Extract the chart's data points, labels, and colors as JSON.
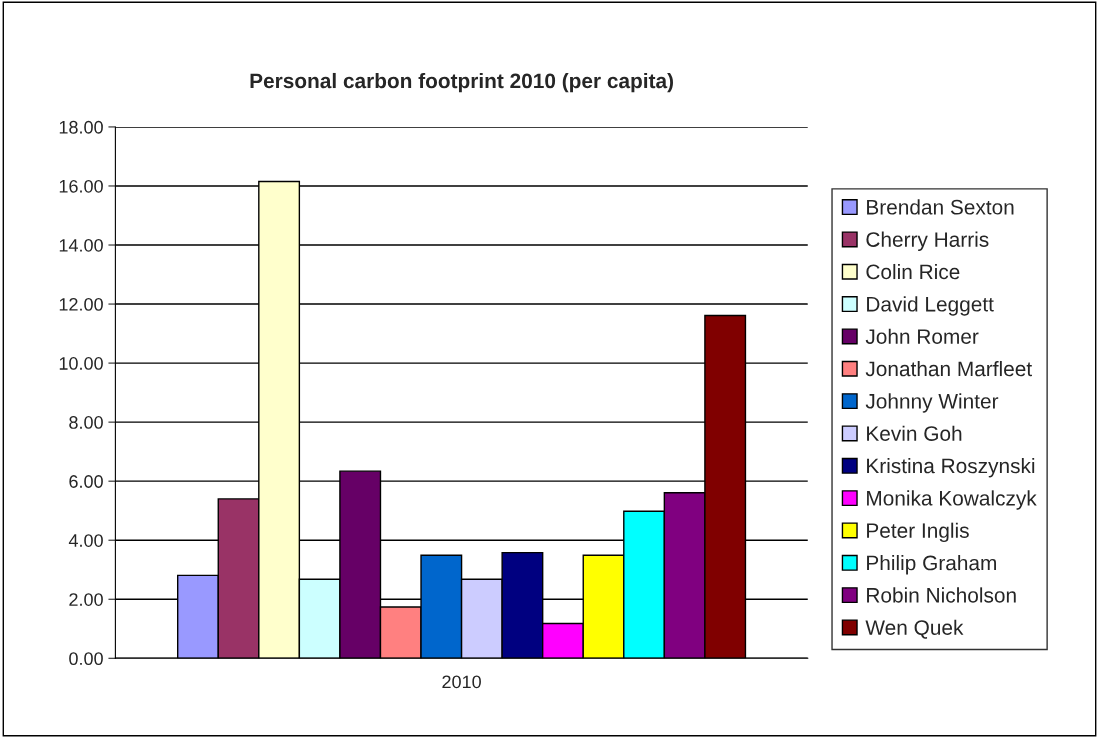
{
  "chart_data": {
    "type": "bar",
    "title": "Personal carbon footprint 2010 (per capita)",
    "categories": [
      "2010"
    ],
    "series": [
      {
        "name": "Brendan Sexton",
        "color": "#9999ff",
        "values": [
          2.81
        ]
      },
      {
        "name": "Cherry Harris",
        "color": "#993366",
        "values": [
          5.4
        ]
      },
      {
        "name": "Colin Rice",
        "color": "#ffffcc",
        "values": [
          16.15
        ]
      },
      {
        "name": "David Leggett",
        "color": "#ccffff",
        "values": [
          2.68
        ]
      },
      {
        "name": "John Romer",
        "color": "#660066",
        "values": [
          6.34
        ]
      },
      {
        "name": "Jonathan Marfleet",
        "color": "#ff8080",
        "values": [
          1.74
        ]
      },
      {
        "name": "Johnny Winter",
        "color": "#0066cc",
        "values": [
          3.49
        ]
      },
      {
        "name": "Kevin Goh",
        "color": "#ccccff",
        "values": [
          2.68
        ]
      },
      {
        "name": "Kristina Roszynski",
        "color": "#000080",
        "values": [
          3.58
        ]
      },
      {
        "name": "Monika Kowalczyk",
        "color": "#ff00ff",
        "values": [
          1.18
        ]
      },
      {
        "name": "Peter Inglis",
        "color": "#ffff00",
        "values": [
          3.49
        ]
      },
      {
        "name": "Philip Graham",
        "color": "#00ffff",
        "values": [
          4.98
        ]
      },
      {
        "name": "Robin Nicholson",
        "color": "#800080",
        "values": [
          5.61
        ]
      },
      {
        "name": "Wen Quek",
        "color": "#800000",
        "values": [
          11.61
        ]
      }
    ],
    "ylim": [
      0,
      18
    ],
    "yticks": [
      {
        "value": 0,
        "label": "0.00"
      },
      {
        "value": 2,
        "label": "2.00"
      },
      {
        "value": 4,
        "label": "4.00"
      },
      {
        "value": 6,
        "label": "6.00"
      },
      {
        "value": 8,
        "label": "8.00"
      },
      {
        "value": 10,
        "label": "10.00"
      },
      {
        "value": 12,
        "label": "12.00"
      },
      {
        "value": 14,
        "label": "14.00"
      },
      {
        "value": 16,
        "label": "16.00"
      },
      {
        "value": 18,
        "label": "18.00"
      }
    ],
    "grid": "y",
    "legend": "right"
  }
}
